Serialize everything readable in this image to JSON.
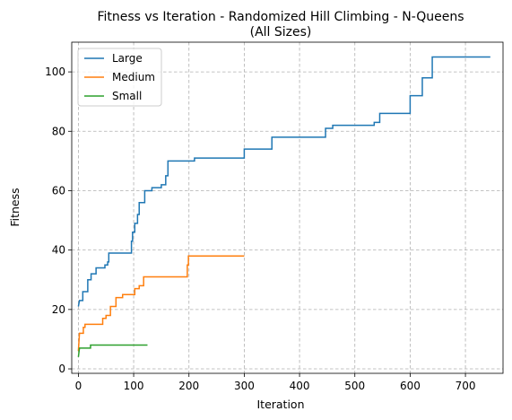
{
  "chart_data": {
    "type": "line",
    "title": "Fitness vs Iteration - Randomized Hill Climbing - N-Queens",
    "subtitle": "(All Sizes)",
    "xlabel": "Iteration",
    "ylabel": "Fitness",
    "xlim": [
      -12,
      768
    ],
    "ylim": [
      -1.5,
      110
    ],
    "xticks": [
      0,
      100,
      200,
      300,
      400,
      500,
      600,
      700
    ],
    "yticks": [
      0,
      20,
      40,
      60,
      80,
      100
    ],
    "grid": true,
    "legend_position": "top-left",
    "series": [
      {
        "name": "Large",
        "color": "#1f77b4",
        "points": [
          [
            0,
            21
          ],
          [
            2,
            23
          ],
          [
            8,
            23
          ],
          [
            8,
            26
          ],
          [
            17,
            26
          ],
          [
            17,
            30
          ],
          [
            23,
            30
          ],
          [
            23,
            32
          ],
          [
            32,
            32
          ],
          [
            32,
            34
          ],
          [
            48,
            34
          ],
          [
            48,
            35
          ],
          [
            53,
            35
          ],
          [
            53,
            36
          ],
          [
            55,
            36
          ],
          [
            55,
            39
          ],
          [
            96,
            39
          ],
          [
            96,
            43
          ],
          [
            98,
            43
          ],
          [
            98,
            46
          ],
          [
            102,
            46
          ],
          [
            102,
            49
          ],
          [
            107,
            49
          ],
          [
            107,
            52
          ],
          [
            110,
            52
          ],
          [
            110,
            56
          ],
          [
            120,
            56
          ],
          [
            120,
            60
          ],
          [
            133,
            60
          ],
          [
            133,
            61
          ],
          [
            150,
            61
          ],
          [
            150,
            62
          ],
          [
            158,
            62
          ],
          [
            158,
            65
          ],
          [
            162,
            65
          ],
          [
            162,
            70
          ],
          [
            210,
            70
          ],
          [
            210,
            71
          ],
          [
            300,
            71
          ],
          [
            300,
            74
          ],
          [
            350,
            74
          ],
          [
            350,
            78
          ],
          [
            447,
            78
          ],
          [
            447,
            81
          ],
          [
            460,
            81
          ],
          [
            460,
            82
          ],
          [
            535,
            82
          ],
          [
            535,
            83
          ],
          [
            545,
            83
          ],
          [
            545,
            86
          ],
          [
            600,
            86
          ],
          [
            600,
            92
          ],
          [
            622,
            92
          ],
          [
            622,
            98
          ],
          [
            640,
            98
          ],
          [
            640,
            105
          ],
          [
            745,
            105
          ]
        ]
      },
      {
        "name": "Medium",
        "color": "#ff7f0e",
        "points": [
          [
            0,
            6
          ],
          [
            1,
            9
          ],
          [
            2,
            12
          ],
          [
            9,
            12
          ],
          [
            9,
            14
          ],
          [
            12,
            14
          ],
          [
            12,
            15
          ],
          [
            44,
            15
          ],
          [
            44,
            17
          ],
          [
            50,
            17
          ],
          [
            50,
            18
          ],
          [
            58,
            18
          ],
          [
            58,
            21
          ],
          [
            68,
            21
          ],
          [
            68,
            24
          ],
          [
            80,
            24
          ],
          [
            80,
            25
          ],
          [
            102,
            25
          ],
          [
            102,
            27
          ],
          [
            110,
            27
          ],
          [
            110,
            28
          ],
          [
            118,
            28
          ],
          [
            118,
            31
          ],
          [
            197,
            31
          ],
          [
            197,
            35
          ],
          [
            199,
            35
          ],
          [
            199,
            38
          ],
          [
            300,
            38
          ]
        ]
      },
      {
        "name": "Small",
        "color": "#2ca02c",
        "points": [
          [
            0,
            4
          ],
          [
            2,
            7
          ],
          [
            22,
            7
          ],
          [
            22,
            8
          ],
          [
            125,
            8
          ]
        ]
      }
    ]
  }
}
